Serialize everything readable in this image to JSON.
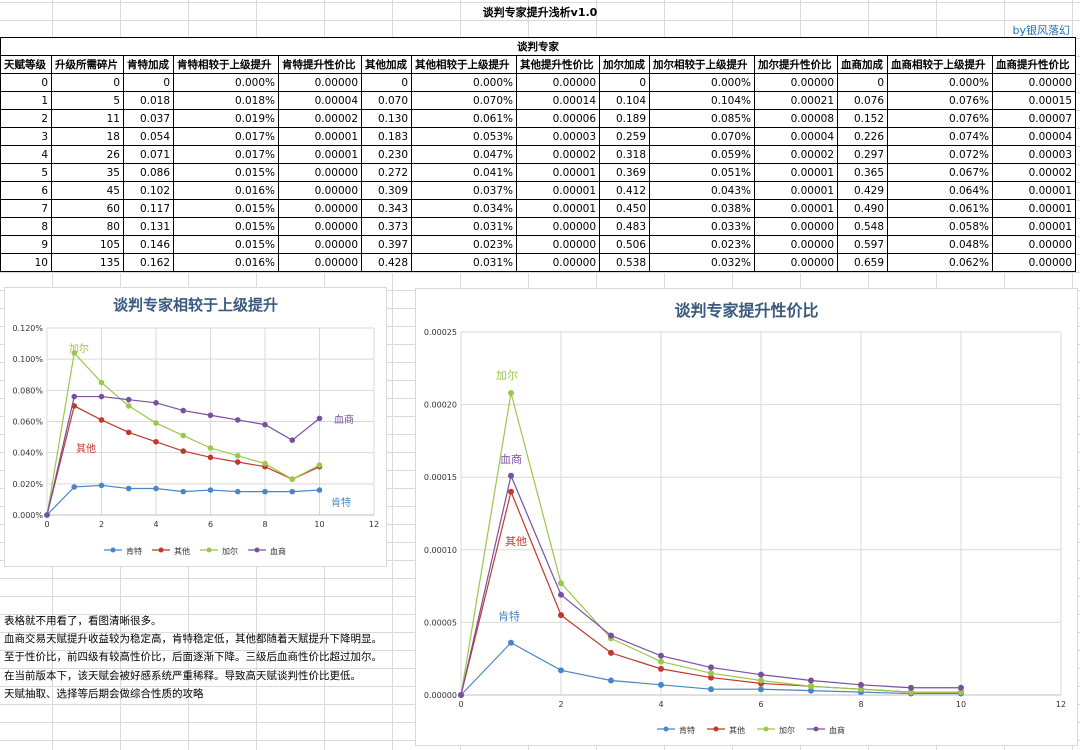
{
  "sheet": {
    "title": "谈判专家提升浅析v1.0",
    "byline": "by银风落幻",
    "group_header": "谈判专家"
  },
  "table": {
    "headers": [
      "天赋等级",
      "升级所需碎片",
      "肯特加成",
      "肯特相较于上级提升",
      "肯特提升性价比",
      "其他加成",
      "其他相较于上级提升",
      "其他提升性价比",
      "加尔加成",
      "加尔相较于上级提升",
      "加尔提升性价比",
      "血商加成",
      "血商相较于上级提升",
      "血商提升性价比"
    ],
    "rows": [
      [
        "0",
        "0",
        "0",
        "0.000%",
        "0.00000",
        "0",
        "0.000%",
        "0.00000",
        "0",
        "0.000%",
        "0.00000",
        "0",
        "0.000%",
        "0.00000"
      ],
      [
        "1",
        "5",
        "0.018",
        "0.018%",
        "0.00004",
        "0.070",
        "0.070%",
        "0.00014",
        "0.104",
        "0.104%",
        "0.00021",
        "0.076",
        "0.076%",
        "0.00015"
      ],
      [
        "2",
        "11",
        "0.037",
        "0.019%",
        "0.00002",
        "0.130",
        "0.061%",
        "0.00006",
        "0.189",
        "0.085%",
        "0.00008",
        "0.152",
        "0.076%",
        "0.00007"
      ],
      [
        "3",
        "18",
        "0.054",
        "0.017%",
        "0.00001",
        "0.183",
        "0.053%",
        "0.00003",
        "0.259",
        "0.070%",
        "0.00004",
        "0.226",
        "0.074%",
        "0.00004"
      ],
      [
        "4",
        "26",
        "0.071",
        "0.017%",
        "0.00001",
        "0.230",
        "0.047%",
        "0.00002",
        "0.318",
        "0.059%",
        "0.00002",
        "0.297",
        "0.072%",
        "0.00003"
      ],
      [
        "5",
        "35",
        "0.086",
        "0.015%",
        "0.00000",
        "0.272",
        "0.041%",
        "0.00001",
        "0.369",
        "0.051%",
        "0.00001",
        "0.365",
        "0.067%",
        "0.00002"
      ],
      [
        "6",
        "45",
        "0.102",
        "0.016%",
        "0.00000",
        "0.309",
        "0.037%",
        "0.00001",
        "0.412",
        "0.043%",
        "0.00001",
        "0.429",
        "0.064%",
        "0.00001"
      ],
      [
        "7",
        "60",
        "0.117",
        "0.015%",
        "0.00000",
        "0.343",
        "0.034%",
        "0.00001",
        "0.450",
        "0.038%",
        "0.00001",
        "0.490",
        "0.061%",
        "0.00001"
      ],
      [
        "8",
        "80",
        "0.131",
        "0.015%",
        "0.00000",
        "0.373",
        "0.031%",
        "0.00000",
        "0.483",
        "0.033%",
        "0.00000",
        "0.548",
        "0.058%",
        "0.00001"
      ],
      [
        "9",
        "105",
        "0.146",
        "0.015%",
        "0.00000",
        "0.397",
        "0.023%",
        "0.00000",
        "0.506",
        "0.023%",
        "0.00000",
        "0.597",
        "0.048%",
        "0.00000"
      ],
      [
        "10",
        "135",
        "0.162",
        "0.016%",
        "0.00000",
        "0.428",
        "0.031%",
        "0.00000",
        "0.538",
        "0.032%",
        "0.00000",
        "0.659",
        "0.062%",
        "0.00000"
      ]
    ]
  },
  "notes": [
    "表格就不用看了，看图清晰很多。",
    "血商交易天赋提升收益较为稳定高，肯特稳定低，其他都随着天赋提升下降明显。",
    "至于性价比，前四级有较高性价比，后面逐渐下降。三级后血商性价比超过加尔。",
    "在当前版本下，该天赋会被好感系统严重稀释。导致高天赋谈判性价比更低。",
    "天赋抽取、选择等后期会做综合性质的攻略"
  ],
  "colors": {
    "肯特": "#4a86c5",
    "其他": "#c0392b",
    "加尔": "#9bc84a",
    "血商": "#7b4fa0",
    "chart_title": "#3a5a7e"
  },
  "chart_data": [
    {
      "type": "line",
      "title": "谈判专家相较于上级提升",
      "x": [
        0,
        1,
        2,
        3,
        4,
        5,
        6,
        7,
        8,
        9,
        10
      ],
      "xlim": [
        0,
        12
      ],
      "xticks": [
        "0",
        "2",
        "4",
        "6",
        "8",
        "10",
        "12"
      ],
      "ylim": [
        0,
        0.0012
      ],
      "yticks": [
        "0.000%",
        "0.020%",
        "0.040%",
        "0.060%",
        "0.080%",
        "0.100%",
        "0.120%"
      ],
      "grid": true,
      "legend": "bottom",
      "series": [
        {
          "name": "肯特",
          "label": "肯特",
          "values": [
            0,
            0.00018,
            0.00019,
            0.00017,
            0.00017,
            0.00015,
            0.00016,
            0.00015,
            0.00015,
            0.00015,
            0.00016
          ]
        },
        {
          "name": "其他",
          "label": "其他",
          "values": [
            0,
            0.0007,
            0.00061,
            0.00053,
            0.00047,
            0.00041,
            0.00037,
            0.00034,
            0.00031,
            0.00023,
            0.00031
          ]
        },
        {
          "name": "加尔",
          "label": "加尔",
          "values": [
            0,
            0.00104,
            0.00085,
            0.0007,
            0.00059,
            0.00051,
            0.00043,
            0.00038,
            0.00033,
            0.00023,
            0.00032
          ]
        },
        {
          "name": "血商",
          "label": "血商",
          "values": [
            0,
            0.00076,
            0.00076,
            0.00074,
            0.00072,
            0.00067,
            0.00064,
            0.00061,
            0.00058,
            0.00048,
            0.00062
          ]
        }
      ]
    },
    {
      "type": "line",
      "title": "谈判专家提升性价比",
      "x": [
        0,
        1,
        2,
        3,
        4,
        5,
        6,
        7,
        8,
        9,
        10
      ],
      "xlim": [
        0,
        12
      ],
      "xticks": [
        "0",
        "2",
        "4",
        "6",
        "8",
        "10",
        "12"
      ],
      "ylim": [
        0,
        0.00025
      ],
      "yticks": [
        "0.00000",
        "0.00005",
        "0.00010",
        "0.00015",
        "0.00020",
        "0.00025"
      ],
      "grid": true,
      "legend": "bottom",
      "series": [
        {
          "name": "肯特",
          "label": "肯特",
          "values": [
            0,
            3.6e-05,
            1.7e-05,
            1e-05,
            7e-06,
            4e-06,
            4e-06,
            3e-06,
            2e-06,
            1e-06,
            1e-06
          ]
        },
        {
          "name": "其他",
          "label": "其他",
          "values": [
            0,
            0.00014,
            5.5e-05,
            2.9e-05,
            1.8e-05,
            1.2e-05,
            8e-06,
            6e-06,
            4e-06,
            2e-06,
            2e-06
          ]
        },
        {
          "name": "加尔",
          "label": "加尔",
          "values": [
            0,
            0.000208,
            7.7e-05,
            3.9e-05,
            2.3e-05,
            1.5e-05,
            1e-05,
            6e-06,
            4e-06,
            2e-06,
            2e-06
          ]
        },
        {
          "name": "血商",
          "label": "血商",
          "values": [
            0,
            0.000151,
            6.9e-05,
            4.1e-05,
            2.7e-05,
            1.9e-05,
            1.4e-05,
            1e-05,
            7e-06,
            5e-06,
            5e-06
          ]
        }
      ]
    }
  ]
}
